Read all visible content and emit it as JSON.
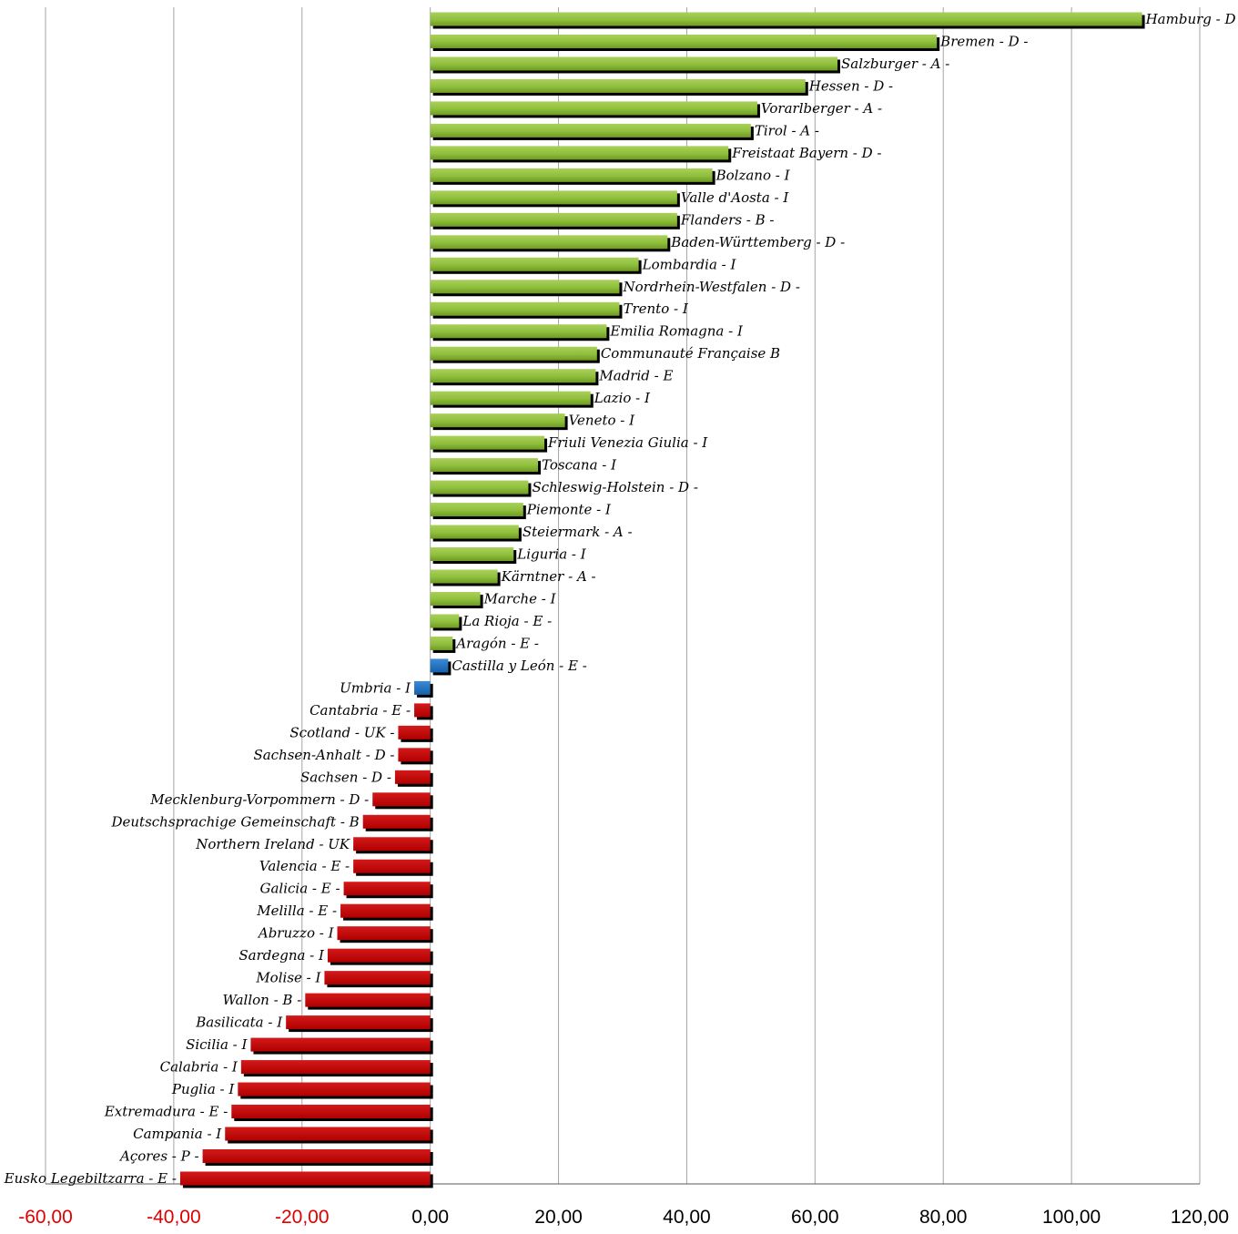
{
  "chart_data": {
    "type": "bar",
    "orientation": "horizontal",
    "title": "",
    "xlabel": "",
    "ylabel": "",
    "xlim": [
      -60,
      120
    ],
    "grid": true,
    "legend": "none",
    "x_ticks": [
      {
        "value": -60,
        "label": "-60,00",
        "color": "#e00000"
      },
      {
        "value": -40,
        "label": "-40,00",
        "color": "#e00000"
      },
      {
        "value": -20,
        "label": "-20,00",
        "color": "#e00000"
      },
      {
        "value": 0,
        "label": "0,00",
        "color": "#000000"
      },
      {
        "value": 20,
        "label": "20,00",
        "color": "#000000"
      },
      {
        "value": 40,
        "label": "40,00",
        "color": "#000000"
      },
      {
        "value": 60,
        "label": "60,00",
        "color": "#000000"
      },
      {
        "value": 80,
        "label": "80,00",
        "color": "#000000"
      },
      {
        "value": 100,
        "label": "100,00",
        "color": "#000000"
      },
      {
        "value": 120,
        "label": "120,00",
        "color": "#000000"
      }
    ],
    "colors": {
      "positive": "#8fbf3c",
      "positive_dark": "#6e9a22",
      "neutral": "#1f6fbf",
      "negative": "#c00000",
      "shadow": "#000000",
      "grid": "#a6a6a6"
    },
    "bars": [
      {
        "label": "Hamburg - D -",
        "value": 111.0,
        "color": "positive"
      },
      {
        "label": "Bremen - D -",
        "value": 79.0,
        "color": "positive"
      },
      {
        "label": "Salzburger - A -",
        "value": 63.5,
        "color": "positive"
      },
      {
        "label": "Hessen - D -",
        "value": 58.5,
        "color": "positive"
      },
      {
        "label": "Vorarlberger - A -",
        "value": 51.0,
        "color": "positive"
      },
      {
        "label": "Tirol - A -",
        "value": 50.0,
        "color": "positive"
      },
      {
        "label": "Freistaat Bayern - D -",
        "value": 46.5,
        "color": "positive"
      },
      {
        "label": "Bolzano - I",
        "value": 44.0,
        "color": "positive"
      },
      {
        "label": "Valle d'Aosta - I",
        "value": 38.5,
        "color": "positive"
      },
      {
        "label": "Flanders - B -",
        "value": 38.5,
        "color": "positive"
      },
      {
        "label": "Baden-Württemberg - D -",
        "value": 37.0,
        "color": "positive"
      },
      {
        "label": "Lombardia - I",
        "value": 32.5,
        "color": "positive"
      },
      {
        "label": "Nordrhein-Westfalen - D -",
        "value": 29.5,
        "color": "positive"
      },
      {
        "label": "Trento - I",
        "value": 29.5,
        "color": "positive"
      },
      {
        "label": "Emilia Romagna - I",
        "value": 27.5,
        "color": "positive"
      },
      {
        "label": "Communauté Française B",
        "value": 26.0,
        "color": "positive"
      },
      {
        "label": "Madrid - E",
        "value": 25.8,
        "color": "positive"
      },
      {
        "label": "Lazio - I",
        "value": 25.0,
        "color": "positive"
      },
      {
        "label": "Veneto - I",
        "value": 21.0,
        "color": "positive"
      },
      {
        "label": "Friuli Venezia Giulia - I",
        "value": 17.8,
        "color": "positive"
      },
      {
        "label": "Toscana - I",
        "value": 16.8,
        "color": "positive"
      },
      {
        "label": "Schleswig-Holstein - D -",
        "value": 15.3,
        "color": "positive"
      },
      {
        "label": "Piemonte - I",
        "value": 14.5,
        "color": "positive"
      },
      {
        "label": "Steiermark - A -",
        "value": 13.8,
        "color": "positive"
      },
      {
        "label": "Liguria - I",
        "value": 13.0,
        "color": "positive"
      },
      {
        "label": "Kärntner - A -",
        "value": 10.5,
        "color": "positive"
      },
      {
        "label": "Marche - I",
        "value": 7.8,
        "color": "positive"
      },
      {
        "label": "La Rioja - E -",
        "value": 4.5,
        "color": "positive"
      },
      {
        "label": "Aragón - E -",
        "value": 3.5,
        "color": "positive"
      },
      {
        "label": "Castilla y León - E -",
        "value": 2.8,
        "color": "neutral"
      },
      {
        "label": "Umbria - I",
        "value": -2.5,
        "color": "neutral"
      },
      {
        "label": "Cantabria - E -",
        "value": -2.5,
        "color": "negative"
      },
      {
        "label": "Scotland - UK -",
        "value": -5.0,
        "color": "negative"
      },
      {
        "label": "Sachsen-Anhalt - D -",
        "value": -5.0,
        "color": "negative"
      },
      {
        "label": "Sachsen - D -",
        "value": -5.5,
        "color": "negative"
      },
      {
        "label": "Mecklenburg-Vorpommern - D -",
        "value": -9.0,
        "color": "negative"
      },
      {
        "label": "Deutschsprachige Gemeinschaft - B",
        "value": -10.5,
        "color": "negative"
      },
      {
        "label": "Northern Ireland - UK",
        "value": -12.0,
        "color": "negative"
      },
      {
        "label": "Valencia - E -",
        "value": -12.0,
        "color": "negative"
      },
      {
        "label": "Galicia - E -",
        "value": -13.5,
        "color": "negative"
      },
      {
        "label": "Melilla - E -",
        "value": -14.0,
        "color": "negative"
      },
      {
        "label": "Abruzzo - I",
        "value": -14.5,
        "color": "negative"
      },
      {
        "label": "Sardegna - I",
        "value": -16.0,
        "color": "negative"
      },
      {
        "label": "Molise - I",
        "value": -16.5,
        "color": "negative"
      },
      {
        "label": "Wallon - B -",
        "value": -19.5,
        "color": "negative"
      },
      {
        "label": "Basilicata - I",
        "value": -22.5,
        "color": "negative"
      },
      {
        "label": "Sicilia - I",
        "value": -28.0,
        "color": "negative"
      },
      {
        "label": "Calabria - I",
        "value": -29.5,
        "color": "negative"
      },
      {
        "label": "Puglia - I",
        "value": -30.0,
        "color": "negative"
      },
      {
        "label": "Extremadura - E -",
        "value": -31.0,
        "color": "negative"
      },
      {
        "label": "Campania - I",
        "value": -32.0,
        "color": "negative"
      },
      {
        "label": "Açores - P -",
        "value": -35.5,
        "color": "negative"
      },
      {
        "label": "Eusko Legebiltzarra - E -",
        "value": -39.0,
        "color": "negative"
      }
    ]
  }
}
